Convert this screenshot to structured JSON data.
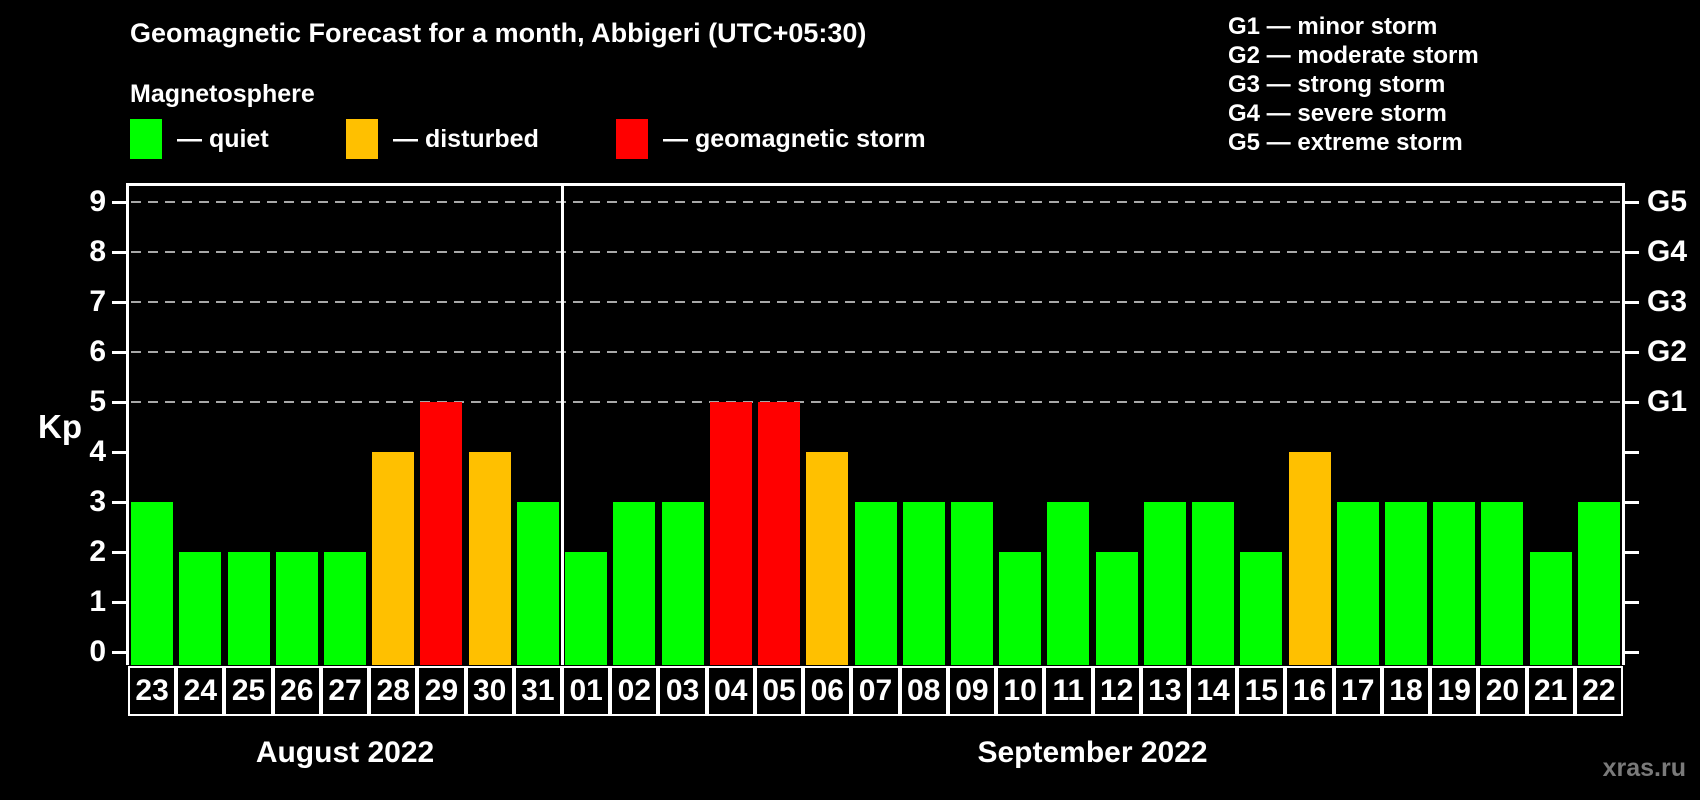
{
  "header": {
    "title": "Geomagnetic Forecast for a month, Abbigeri (UTC+05:30)",
    "subtitle": "Magnetosphere"
  },
  "legend": {
    "items": [
      {
        "key": "quiet",
        "label": "— quiet",
        "color": "#00FF00"
      },
      {
        "key": "disturbed",
        "label": "— disturbed",
        "color": "#FFC000"
      },
      {
        "key": "storm",
        "label": "— geomagnetic storm",
        "color": "#FF0000"
      }
    ]
  },
  "g_scale": {
    "items": [
      {
        "label": "G1 — minor storm"
      },
      {
        "label": "G2 — moderate storm"
      },
      {
        "label": "G3 — strong storm"
      },
      {
        "label": "G4 — severe storm"
      },
      {
        "label": "G5 — extreme storm"
      }
    ]
  },
  "watermark": "xras.ru",
  "chart_data": {
    "type": "bar",
    "title": "Geomagnetic Forecast for a month, Abbigeri (UTC+05:30)",
    "ylabel": "Kp",
    "ylim": [
      0,
      9
    ],
    "y_ticks": [
      0,
      1,
      2,
      3,
      4,
      5,
      6,
      7,
      8,
      9
    ],
    "gridlines_at_kp": [
      5,
      6,
      7,
      8,
      9
    ],
    "grid": "dashed-horizontal",
    "legend_position": "top",
    "right_axis": {
      "labels": [
        {
          "kp": 5,
          "text": "G1"
        },
        {
          "kp": 6,
          "text": "G2"
        },
        {
          "kp": 7,
          "text": "G3"
        },
        {
          "kp": 8,
          "text": "G4"
        },
        {
          "kp": 9,
          "text": "G5"
        }
      ]
    },
    "status_colors": {
      "quiet": "#00FF00",
      "disturbed": "#FFC000",
      "storm": "#FF0000"
    },
    "months": [
      {
        "label": "August 2022",
        "days": [
          "23",
          "24",
          "25",
          "26",
          "27",
          "28",
          "29",
          "30",
          "31"
        ],
        "values": [
          3,
          2,
          2,
          2,
          2,
          4,
          5,
          4,
          3
        ],
        "statuses": [
          "quiet",
          "quiet",
          "quiet",
          "quiet",
          "quiet",
          "disturbed",
          "storm",
          "disturbed",
          "quiet"
        ]
      },
      {
        "label": "September 2022",
        "days": [
          "01",
          "02",
          "03",
          "04",
          "05",
          "06",
          "07",
          "08",
          "09",
          "10",
          "11",
          "12",
          "13",
          "14",
          "15",
          "16",
          "17",
          "18",
          "19",
          "20",
          "21",
          "22"
        ],
        "values": [
          2,
          3,
          3,
          5,
          5,
          4,
          3,
          3,
          3,
          2,
          3,
          2,
          3,
          3,
          2,
          4,
          3,
          3,
          3,
          3,
          2,
          3
        ],
        "statuses": [
          "quiet",
          "quiet",
          "quiet",
          "storm",
          "storm",
          "disturbed",
          "quiet",
          "quiet",
          "quiet",
          "quiet",
          "quiet",
          "quiet",
          "quiet",
          "quiet",
          "quiet",
          "disturbed",
          "quiet",
          "quiet",
          "quiet",
          "quiet",
          "quiet",
          "quiet"
        ]
      }
    ]
  }
}
